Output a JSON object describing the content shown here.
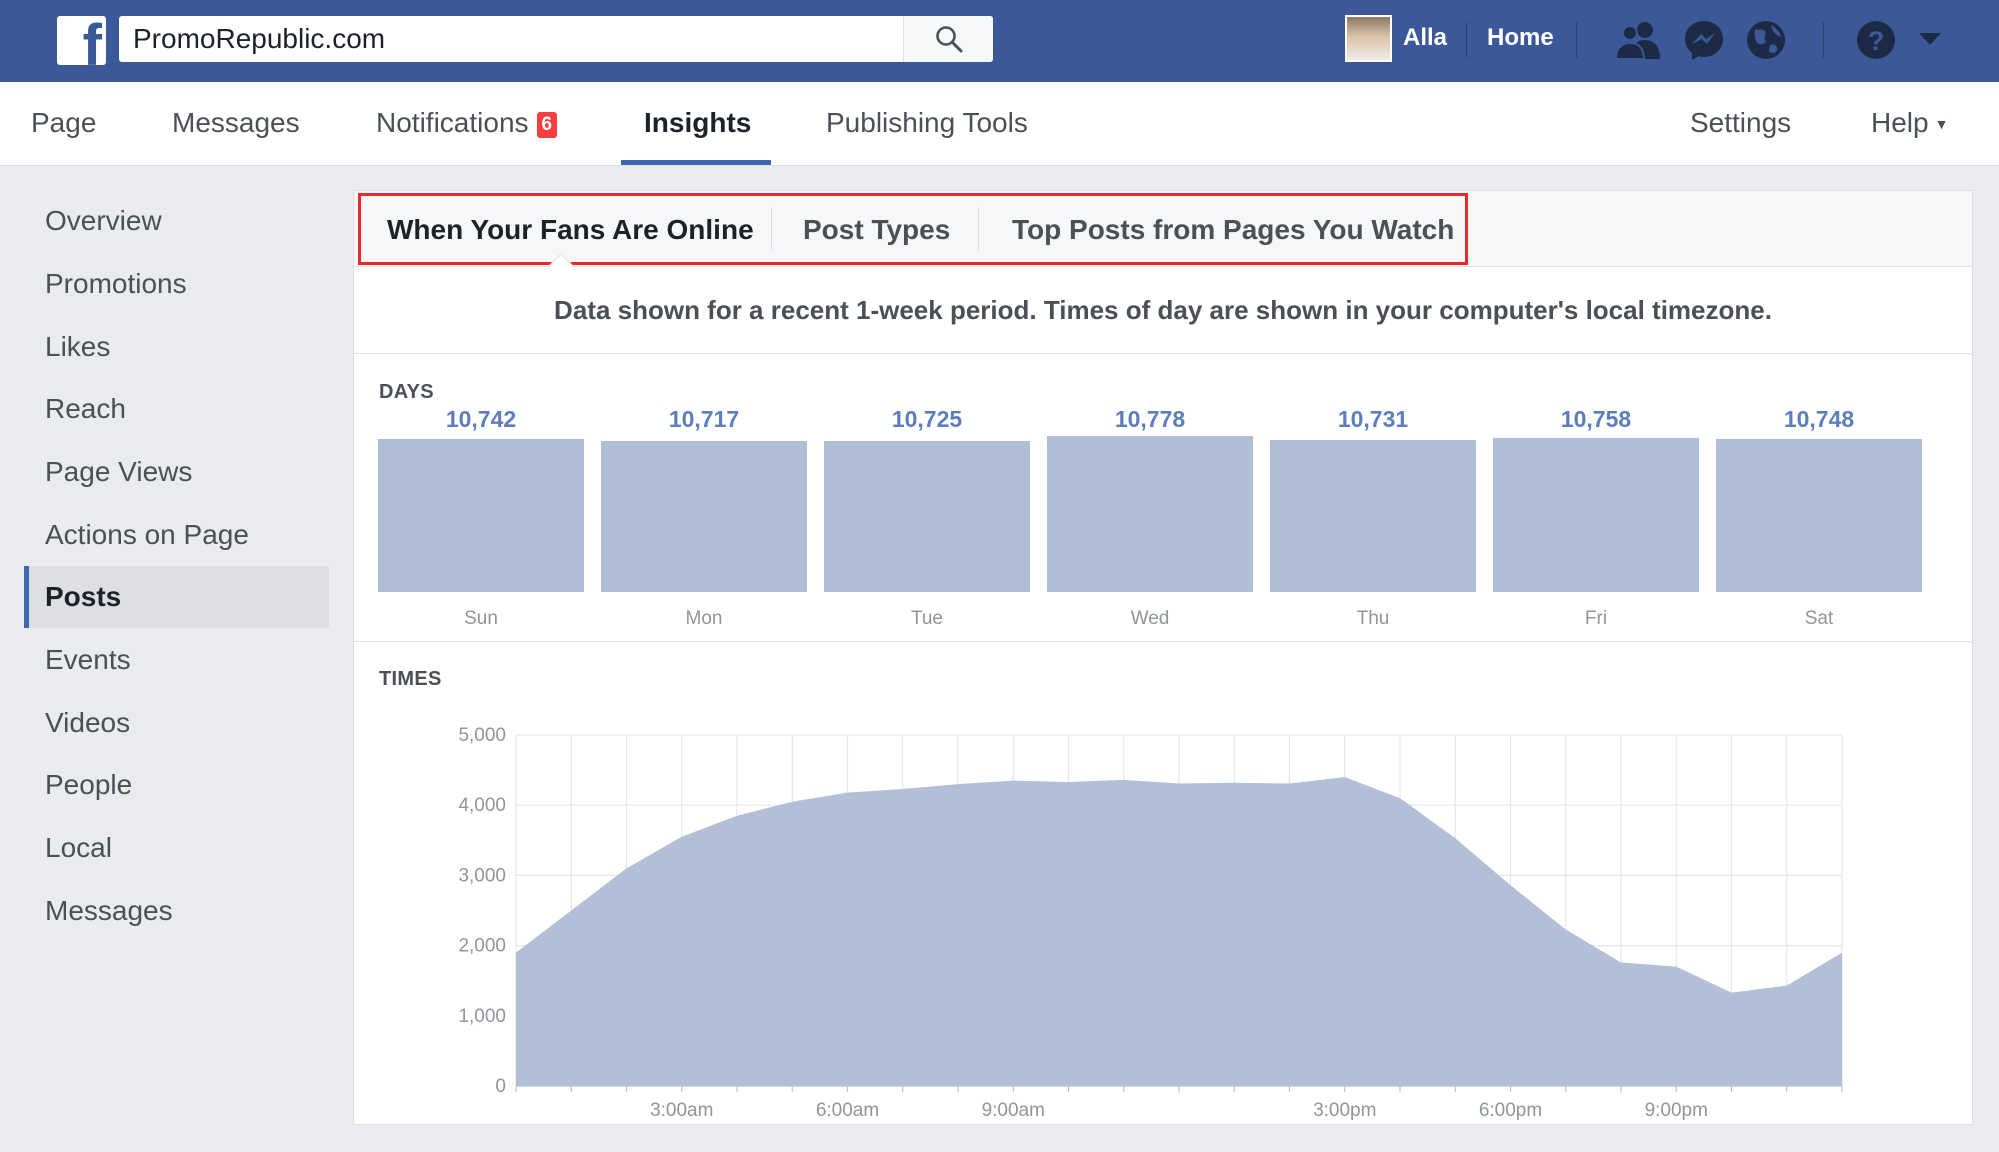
{
  "topbar": {
    "search_value": "PromoRepublic.com",
    "user_name": "Alla",
    "home_label": "Home"
  },
  "pagenav": {
    "page": "Page",
    "messages": "Messages",
    "notifications": "Notifications",
    "notifications_count": "6",
    "insights": "Insights",
    "publishing_tools": "Publishing Tools",
    "settings": "Settings",
    "help": "Help",
    "caret": "▼"
  },
  "sidebar": {
    "items": [
      {
        "label": "Overview"
      },
      {
        "label": "Promotions"
      },
      {
        "label": "Likes"
      },
      {
        "label": "Reach"
      },
      {
        "label": "Page Views"
      },
      {
        "label": "Actions on Page"
      },
      {
        "label": "Posts"
      },
      {
        "label": "Events"
      },
      {
        "label": "Videos"
      },
      {
        "label": "People"
      },
      {
        "label": "Local"
      },
      {
        "label": "Messages"
      }
    ]
  },
  "tabs": {
    "fans_online": "When Your Fans Are Online",
    "post_types": "Post Types",
    "top_posts": "Top Posts from Pages You Watch"
  },
  "info_text": "Data shown for a recent 1-week period. Times of day are shown in your computer's local timezone.",
  "days_label": "DAYS",
  "times_label": "TIMES",
  "colors": {
    "brand": "#3b5998",
    "accent": "#4267b2",
    "bar_fill": "#afbdd6",
    "highlight": "#e52a2a",
    "badge": "#fa3e3e"
  },
  "chart_data": [
    {
      "type": "bar",
      "title": "DAYS",
      "categories": [
        "Sun",
        "Mon",
        "Tue",
        "Wed",
        "Thu",
        "Fri",
        "Sat"
      ],
      "values": [
        10742,
        10717,
        10725,
        10778,
        10731,
        10758,
        10748
      ],
      "value_labels": [
        "10,742",
        "10,717",
        "10,725",
        "10,778",
        "10,731",
        "10,758",
        "10,748"
      ]
    },
    {
      "type": "area",
      "title": "TIMES",
      "x": [
        "12:00am",
        "1:00am",
        "2:00am",
        "3:00am",
        "4:00am",
        "5:00am",
        "6:00am",
        "7:00am",
        "8:00am",
        "9:00am",
        "10:00am",
        "11:00am",
        "12:00pm",
        "1:00pm",
        "2:00pm",
        "3:00pm",
        "4:00pm",
        "5:00pm",
        "6:00pm",
        "7:00pm",
        "8:00pm",
        "9:00pm",
        "10:00pm",
        "11:00pm",
        "12:00am"
      ],
      "values": [
        1900,
        2500,
        3100,
        3550,
        3850,
        4050,
        4180,
        4230,
        4300,
        4350,
        4330,
        4360,
        4310,
        4320,
        4310,
        4400,
        4100,
        3530,
        2860,
        2230,
        1760,
        1700,
        1330,
        1430,
        1900
      ],
      "xticks": [
        "3:00am",
        "6:00am",
        "9:00am",
        "3:00pm",
        "6:00pm",
        "9:00pm"
      ],
      "xtick_hours": [
        3,
        6,
        9,
        15,
        18,
        21
      ],
      "yticks": [
        0,
        1000,
        2000,
        3000,
        4000,
        5000
      ],
      "ytick_labels": [
        "0",
        "1,000",
        "2,000",
        "3,000",
        "4,000",
        "5,000"
      ],
      "ylim": [
        0,
        5000
      ],
      "grid": true
    }
  ]
}
